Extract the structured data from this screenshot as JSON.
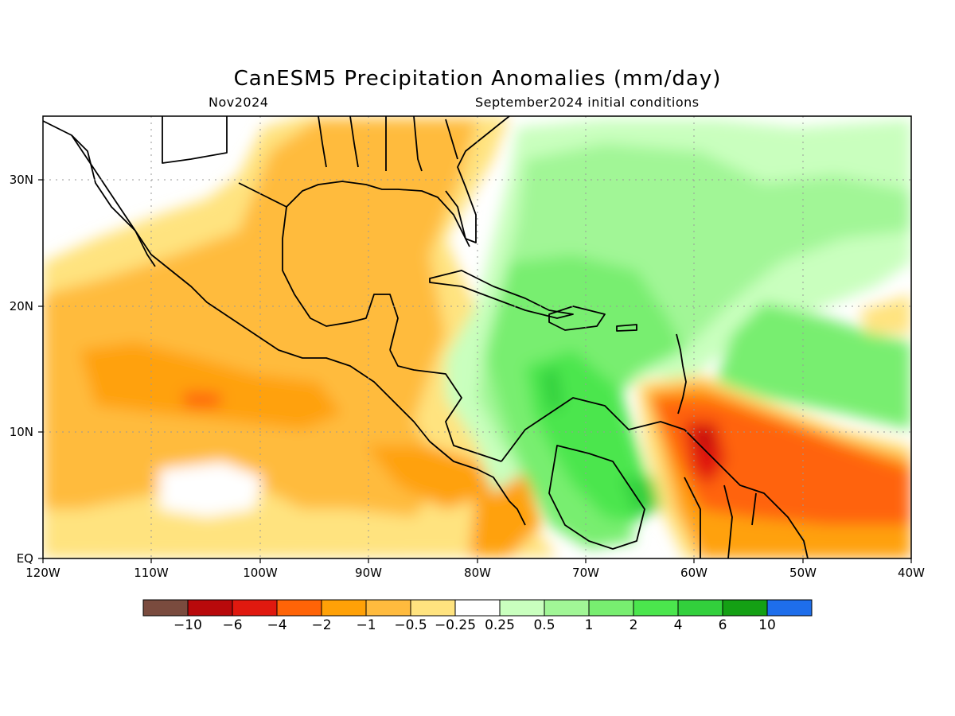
{
  "title": "CanESM5 Precipitation Anomalies (mm/day)",
  "subtitle_left": "Nov2024",
  "subtitle_right": "September2024 initial conditions",
  "map": {
    "lon_range": [
      -120,
      -40
    ],
    "lat_range": [
      0,
      35
    ],
    "variable": "precipitation anomaly",
    "units": "mm/day",
    "lat_labels": [
      "30N",
      "20N",
      "10N",
      "EQ"
    ],
    "lon_labels": [
      "120W",
      "110W",
      "100W",
      "90W",
      "80W",
      "70W",
      "60W",
      "50W",
      "40W"
    ],
    "gridlines": "dotted"
  },
  "colorbar": {
    "colors": [
      "#7a4b3e",
      "#b8090b",
      "#e0190f",
      "#ff6407",
      "#ffa107",
      "#ffbb3e",
      "#ffe37f",
      "#ffffff",
      "#c9ffbe",
      "#a1f696",
      "#78ee70",
      "#4be64d",
      "#32d03c",
      "#14a014",
      "#1e6eeb"
    ],
    "labels": [
      "-10",
      "-6",
      "-4",
      "-2",
      "-1",
      "-0.5",
      "-0.25",
      "0.25",
      "0.5",
      "1",
      "2",
      "4",
      "6",
      "10"
    ]
  }
}
